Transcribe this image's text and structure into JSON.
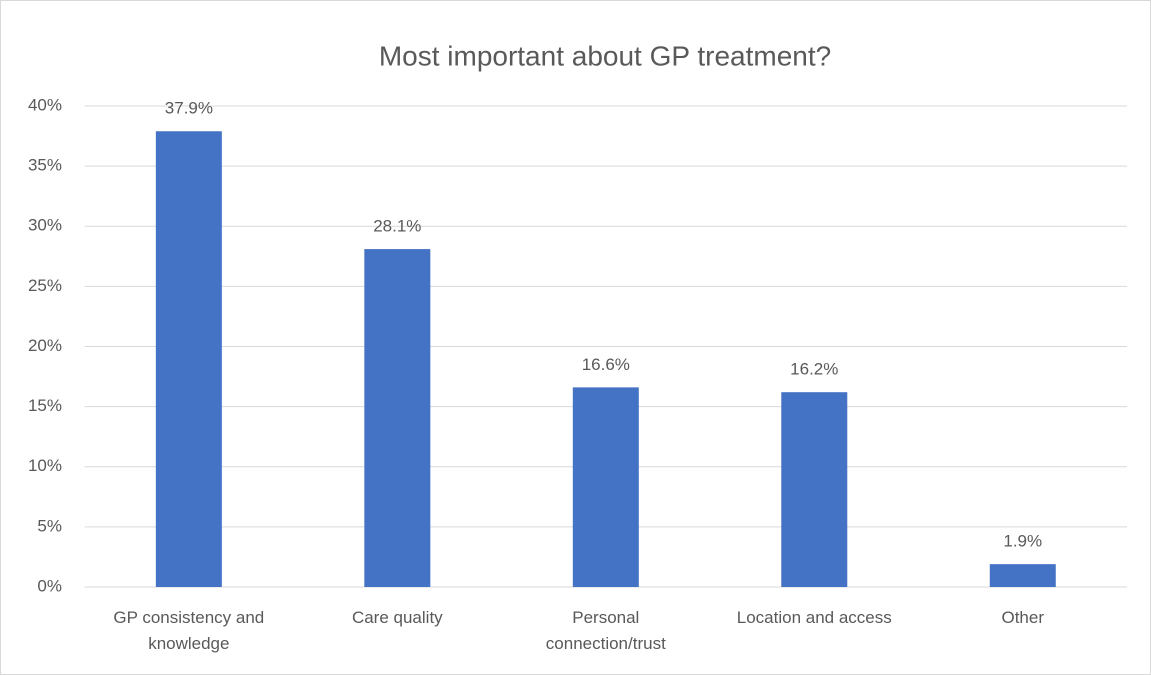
{
  "chart_data": {
    "type": "bar",
    "title": "Most important about GP treatment?",
    "categories": [
      "GP consistency and knowledge",
      "Care quality",
      "Personal connection/trust",
      "Location and access",
      "Other"
    ],
    "values": [
      37.9,
      28.1,
      16.6,
      16.2,
      1.9
    ],
    "value_labels": [
      "37.9%",
      "28.1%",
      "16.6%",
      "16.2%",
      "1.9%"
    ],
    "color": "#4472c4",
    "ylim": [
      0,
      40
    ],
    "yticks": [
      {
        "value": 0,
        "label": "0%"
      },
      {
        "value": 5,
        "label": "5%"
      },
      {
        "value": 10,
        "label": "10%"
      },
      {
        "value": 15,
        "label": "15%"
      },
      {
        "value": 20,
        "label": "20%"
      },
      {
        "value": 25,
        "label": "25%"
      },
      {
        "value": 30,
        "label": "30%"
      },
      {
        "value": 35,
        "label": "35%"
      },
      {
        "value": 40,
        "label": "40%"
      }
    ],
    "grid": true
  }
}
